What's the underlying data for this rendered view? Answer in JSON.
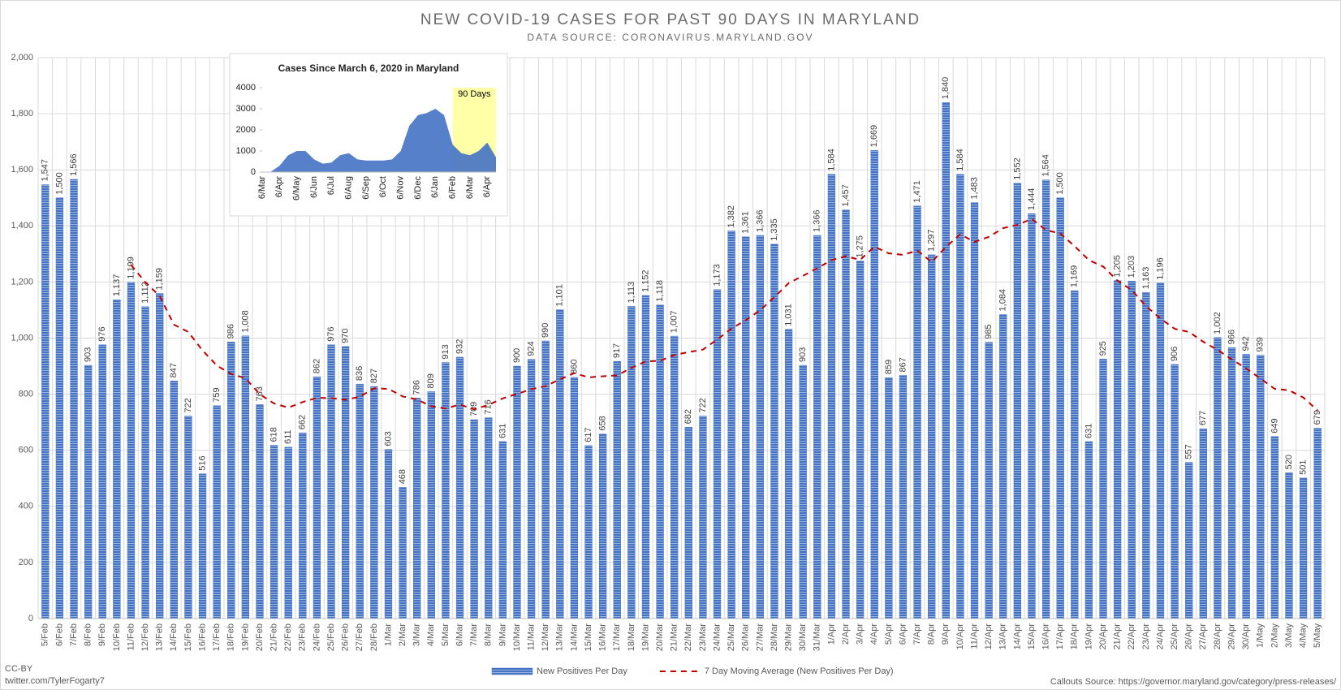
{
  "chart_data": [
    {
      "type": "bar",
      "title": "NEW COVID-19 CASES FOR PAST 90 DAYS IN MARYLAND",
      "subtitle": "DATA SOURCE: CORONAVIRUS.MARYLAND.GOV",
      "categories": [
        "5/Feb",
        "6/Feb",
        "7/Feb",
        "8/Feb",
        "9/Feb",
        "10/Feb",
        "11/Feb",
        "12/Feb",
        "13/Feb",
        "14/Feb",
        "15/Feb",
        "16/Feb",
        "17/Feb",
        "18/Feb",
        "19/Feb",
        "20/Feb",
        "21/Feb",
        "22/Feb",
        "23/Feb",
        "24/Feb",
        "25/Feb",
        "26/Feb",
        "27/Feb",
        "28/Feb",
        "1/Mar",
        "2/Mar",
        "3/Mar",
        "4/Mar",
        "5/Mar",
        "6/Mar",
        "7/Mar",
        "8/Mar",
        "9/Mar",
        "10/Mar",
        "11/Mar",
        "12/Mar",
        "13/Mar",
        "14/Mar",
        "15/Mar",
        "16/Mar",
        "17/Mar",
        "18/Mar",
        "19/Mar",
        "20/Mar",
        "21/Mar",
        "22/Mar",
        "23/Mar",
        "24/Mar",
        "25/Mar",
        "26/Mar",
        "27/Mar",
        "28/Mar",
        "29/Mar",
        "30/Mar",
        "31/Mar",
        "1/Apr",
        "2/Apr",
        "3/Apr",
        "4/Apr",
        "5/Apr",
        "6/Apr",
        "7/Apr",
        "8/Apr",
        "9/Apr",
        "10/Apr",
        "11/Apr",
        "12/Apr",
        "13/Apr",
        "14/Apr",
        "15/Apr",
        "16/Apr",
        "17/Apr",
        "18/Apr",
        "19/Apr",
        "20/Apr",
        "21/Apr",
        "22/Apr",
        "23/Apr",
        "24/Apr",
        "25/Apr",
        "26/Apr",
        "27/Apr",
        "28/Apr",
        "29/Apr",
        "30/Apr",
        "1/May",
        "2/May",
        "3/May",
        "4/May",
        "5/May"
      ],
      "series": [
        {
          "name": "New Positives Per Day",
          "type": "bar",
          "color": "#4472c4",
          "values": [
            1547,
            1500,
            1566,
            903,
            976,
            1137,
            1199,
            1112,
            1159,
            847,
            722,
            516,
            759,
            986,
            1008,
            763,
            618,
            611,
            662,
            862,
            976,
            970,
            836,
            827,
            603,
            468,
            786,
            809,
            913,
            932,
            709,
            716,
            631,
            900,
            924,
            990,
            1101,
            860,
            617,
            658,
            917,
            1113,
            1152,
            1118,
            1007,
            682,
            722,
            1173,
            1382,
            1361,
            1366,
            1335,
            1031,
            903,
            1366,
            1584,
            1457,
            1275,
            1669,
            859,
            867,
            1471,
            1297,
            1840,
            1584,
            1483,
            985,
            1084,
            1552,
            1444,
            1564,
            1500,
            1169,
            631,
            925,
            1205,
            1203,
            1163,
            1196,
            906,
            557,
            677,
            1002,
            966,
            942,
            939,
            649,
            520,
            501,
            679
          ],
          "value_labels": [
            "1,547",
            "1,500",
            "1,566",
            "903",
            "976",
            "1,137",
            "1,199",
            "1,112",
            "1,159",
            "847",
            "722",
            "516",
            "759",
            "986",
            "1,008",
            "763",
            "618",
            "611",
            "662",
            "862",
            "976",
            "970",
            "836",
            "827",
            "603",
            "468",
            "786",
            "809",
            "913",
            "932",
            "709",
            "716",
            "631",
            "900",
            "924",
            "990",
            "1,101",
            "860",
            "617",
            "658",
            "917",
            "1,113",
            "1,152",
            "1,118",
            "1,007",
            "682",
            "722",
            "1,173",
            "1,382",
            "1,361",
            "1,366",
            "1,335",
            "1,031",
            "903",
            "1,366",
            "1,584",
            "1,457",
            "1,275",
            "1,669",
            "859",
            "867",
            "1,471",
            "1,297",
            "1,840",
            "1,584",
            "1,483",
            "985",
            "1,084",
            "1,552",
            "1,444",
            "1,564",
            "1,500",
            "1,169",
            "631",
            "925",
            "1,205",
            "1,203",
            "1,163",
            "1,196",
            "906",
            "557",
            "677",
            "1,002",
            "966",
            "942",
            "939",
            "649",
            "520",
            "501",
            "679"
          ]
        },
        {
          "name": "7 Day Moving Average (New Positives Per Day)",
          "type": "line",
          "color": "#c00000",
          "values": [
            null,
            null,
            null,
            null,
            null,
            null,
            1261,
            1199,
            1150,
            1048,
            1022,
            956,
            902,
            872,
            857,
            800,
            767,
            752,
            772,
            787,
            786,
            780,
            791,
            821,
            819,
            792,
            781,
            757,
            749,
            763,
            746,
            762,
            785,
            801,
            818,
            829,
            853,
            875,
            860,
            864,
            867,
            894,
            917,
            919,
            940,
            950,
            959,
            995,
            1034,
            1064,
            1099,
            1146,
            1196,
            1222,
            1249,
            1278,
            1292,
            1279,
            1326,
            1302,
            1297,
            1312,
            1271,
            1325,
            1370,
            1343,
            1361,
            1392,
            1404,
            1425,
            1385,
            1373,
            1328,
            1278,
            1255,
            1205,
            1171,
            1114,
            1070,
            1033,
            1022,
            987,
            958,
            924,
            892,
            856,
            819,
            814,
            788,
            742
          ]
        }
      ],
      "ylim": [
        0,
        2000
      ],
      "yticks": [
        0,
        200,
        400,
        600,
        800,
        {
          "value": 1000,
          "label": "1,000"
        },
        {
          "value": 1200,
          "label": "1,200"
        },
        {
          "value": 1400,
          "label": "1,400"
        },
        {
          "value": 1600,
          "label": "1,600"
        },
        {
          "value": 1800,
          "label": "1,800"
        },
        {
          "value": 2000,
          "label": "2,000"
        }
      ],
      "grid": true,
      "legend": "bottom"
    },
    {
      "type": "area",
      "title": "Cases Since March 6, 2020 in Maryland",
      "categories": [
        "6/Mar",
        null,
        "6/Apr",
        null,
        "6/May",
        null,
        "6/Jun",
        null,
        "6/Jul",
        null,
        "6/Aug",
        null,
        "6/Sep",
        null,
        "6/Oct",
        null,
        "6/Nov",
        null,
        "6/Dec",
        null,
        "6/Jan",
        null,
        "6/Feb",
        null,
        "6/Mar",
        null,
        "6/Apr",
        null
      ],
      "values": [
        0,
        20,
        300,
        800,
        1000,
        1000,
        600,
        400,
        450,
        800,
        900,
        600,
        550,
        550,
        550,
        600,
        1000,
        2200,
        2700,
        2800,
        3000,
        2700,
        1300,
        900,
        800,
        1000,
        1400,
        700
      ],
      "color": "#4472c4",
      "ylim": [
        0,
        4000
      ],
      "yticks": [
        0,
        1000,
        2000,
        3000,
        4000
      ],
      "highlight": {
        "label": "90 Days",
        "from": "6/Feb"
      }
    }
  ],
  "footer": {
    "license": "CC-BY",
    "handle": "twitter.com/TylerFogarty7",
    "source": "Callouts Source: https://governor.maryland.gov/category/press-releases/"
  }
}
